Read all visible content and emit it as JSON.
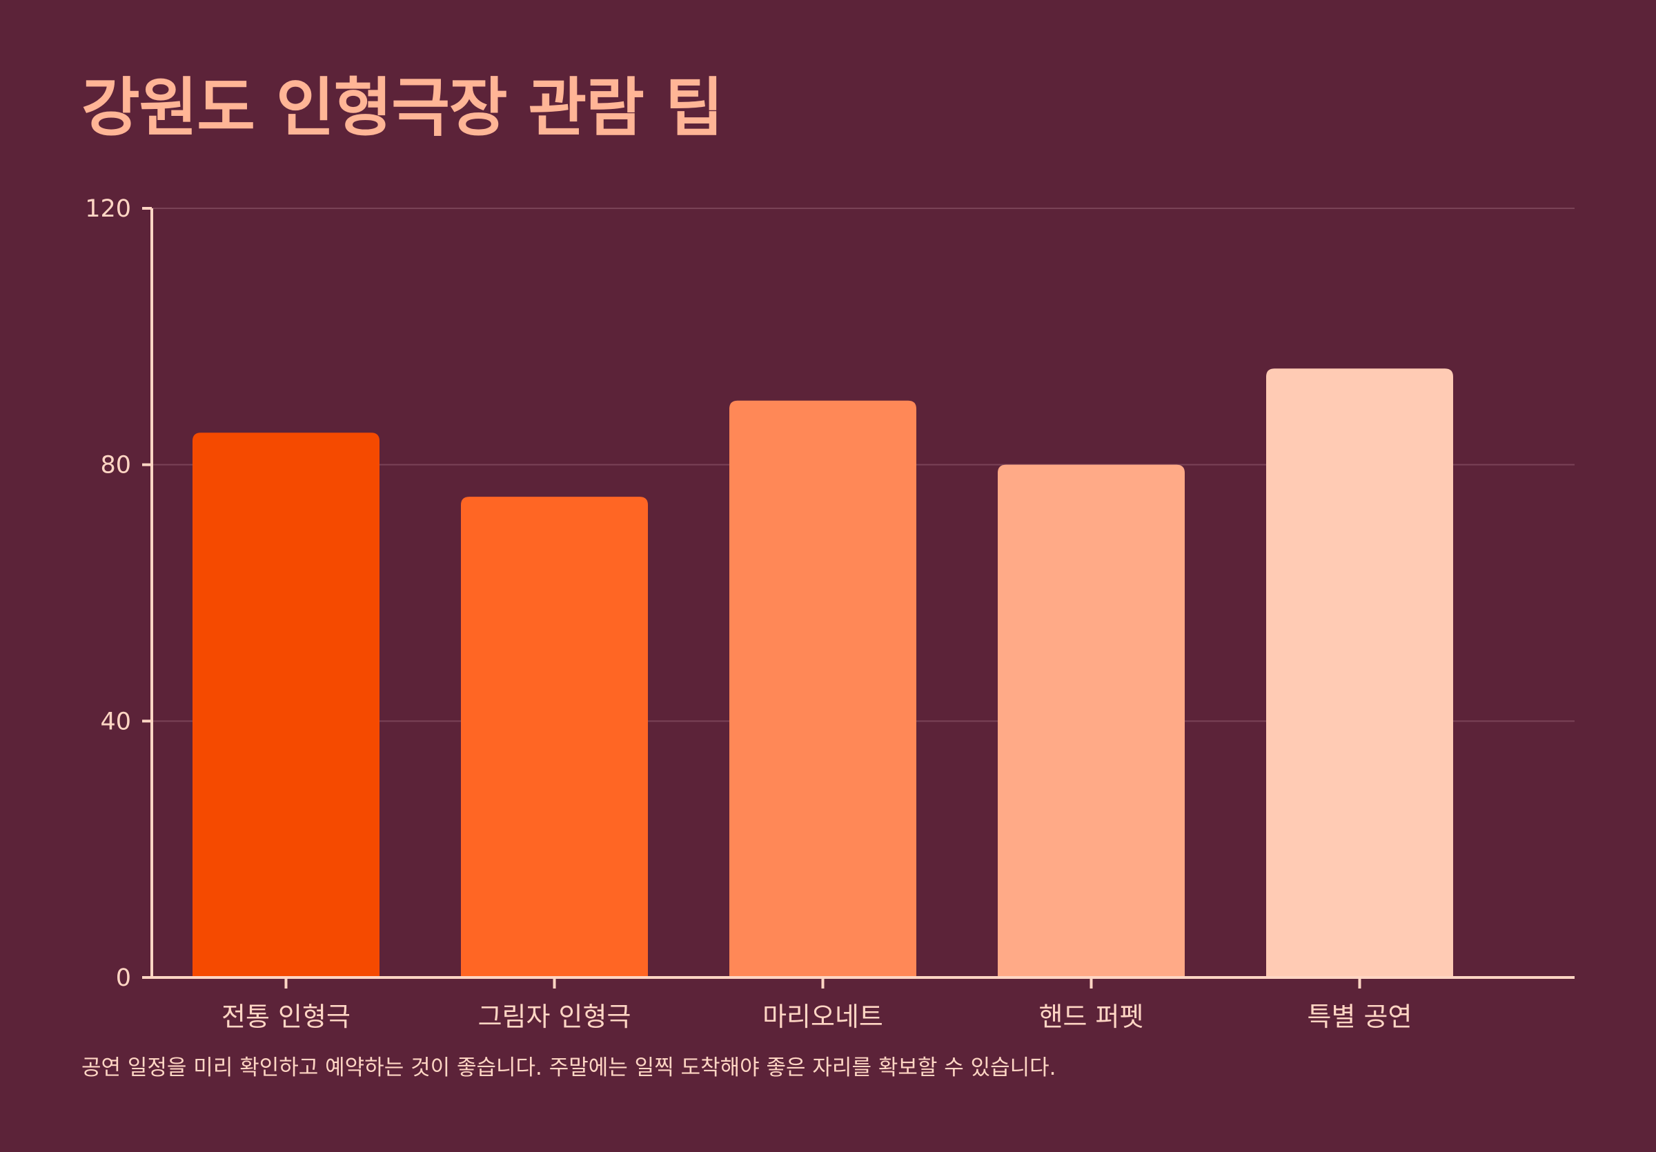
{
  "chart_data": {
    "type": "bar",
    "title": "강원도 인형극장 관람 팁",
    "categories": [
      "전통 인형극",
      "그림자 인형극",
      "마리오네트",
      "핸드 퍼펫",
      "특별 공연"
    ],
    "values": [
      85,
      75,
      90,
      80,
      95
    ],
    "ylim": [
      0,
      120
    ],
    "yticks": [
      0,
      40,
      80,
      120
    ],
    "xlabel": "",
    "ylabel": "",
    "grid": true,
    "legend": "none",
    "colors": [
      "#f54a00",
      "#ff6624",
      "#ff8857",
      "#ffaa87",
      "#ffcbb4"
    ],
    "axis_color": "#ffd6c4",
    "grid_color": "#7a4357",
    "note": "공연 일정을 미리 확인하고 예약하는 것이 좋습니다. 주말에는 일찍 도착해야 좋은 자리를 확보할 수 있습니다."
  }
}
